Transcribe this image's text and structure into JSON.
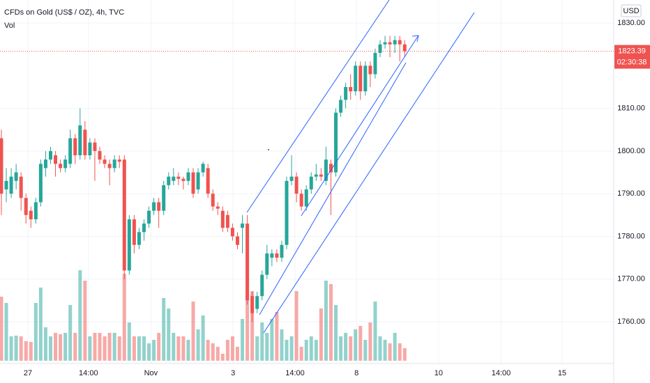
{
  "chart_data": {
    "type": "candlestick",
    "title": "CFDs on Gold (US$ / OZ), 4h, TVC",
    "subtitle": "Vol",
    "currency": "USD",
    "countdown": "02:30:38",
    "up_color": "#26a69a",
    "down_color": "#ef5350",
    "grid": true,
    "x": [
      0,
      1,
      2,
      3,
      4,
      5,
      6,
      7,
      8,
      9,
      10,
      11,
      12,
      13,
      14,
      15,
      16,
      17,
      18,
      19,
      20,
      21,
      22,
      23,
      24,
      25,
      26,
      27,
      28,
      29,
      30,
      31,
      32,
      33,
      34,
      35,
      36,
      37,
      38,
      39,
      40,
      41,
      42,
      43,
      44,
      45,
      46,
      47,
      48,
      49,
      50,
      51,
      52,
      53,
      54,
      55,
      56,
      57,
      58,
      59,
      60,
      61,
      62,
      63,
      64,
      65,
      66,
      67,
      68,
      69,
      70,
      71,
      72,
      73,
      74,
      75,
      76,
      77,
      78,
      79,
      80,
      81,
      82
    ],
    "open": [
      1803,
      1791,
      1790,
      1793,
      1794,
      1789,
      1786,
      1784,
      1788,
      1796,
      1798,
      1799,
      1797,
      1796,
      1797,
      1803,
      1799,
      1805,
      1799,
      1802,
      1800,
      1798,
      1797,
      1796,
      1798,
      1798,
      1772,
      1784,
      1778,
      1781,
      1783,
      1786,
      1788,
      1786,
      1792,
      1793,
      1794,
      1793.5,
      1793,
      1795,
      1791,
      1795,
      1796,
      1790,
      1787,
      1786,
      1785,
      1782,
      1780,
      1782,
      1783,
      1766,
      1763,
      1766,
      1771,
      1775,
      1776,
      1775,
      1778,
      1793,
      1794,
      1790,
      1787,
      1791,
      1794,
      1794.5,
      1793,
      1797,
      1795,
      1809,
      1812,
      1815,
      1814,
      1820,
      1814,
      1820,
      1818,
      1823,
      1825,
      1825.5,
      1825,
      1826,
      1825
    ],
    "high": [
      1805,
      1796,
      1796,
      1797,
      1795,
      1790,
      1787,
      1789,
      1798,
      1800,
      1801,
      1800,
      1798,
      1799,
      1805,
      1804,
      1810,
      1807,
      1803,
      1803,
      1801,
      1799,
      1798,
      1799,
      1799,
      1799,
      1785,
      1785,
      1782,
      1784,
      1787,
      1789,
      1789,
      1793,
      1795,
      1796,
      1795,
      1794,
      1796,
      1796,
      1796,
      1797.5,
      1797,
      1791,
      1788,
      1787,
      1786,
      1783,
      1781,
      1785,
      1785,
      1767,
      1767,
      1772,
      1778,
      1777,
      1777,
      1779,
      1794,
      1799,
      1795,
      1791,
      1792,
      1795,
      1797,
      1796,
      1801,
      1798,
      1810,
      1813,
      1816,
      1818,
      1821,
      1821,
      1821,
      1821,
      1824,
      1826,
      1827,
      1827,
      1827,
      1827,
      1826
    ],
    "low": [
      1785,
      1788,
      1789,
      1791,
      1786,
      1783,
      1782,
      1783,
      1787,
      1794,
      1797,
      1794,
      1795,
      1795,
      1796,
      1797,
      1798,
      1798,
      1798,
      1793,
      1797,
      1796,
      1792,
      1795,
      1796,
      1770,
      1771,
      1776,
      1777,
      1779,
      1782,
      1785,
      1782,
      1785,
      1791,
      1792,
      1792,
      1791,
      1792,
      1789,
      1790,
      1794,
      1789,
      1786,
      1785,
      1781,
      1781,
      1779,
      1777,
      1776,
      1764,
      1760,
      1762,
      1765,
      1770,
      1773,
      1774,
      1774,
      1777,
      1792,
      1788,
      1786,
      1786,
      1790,
      1793,
      1793,
      1792,
      1785,
      1794,
      1808,
      1810,
      1812,
      1813,
      1812,
      1813,
      1815,
      1817,
      1822,
      1824,
      1822,
      1823,
      1821,
      1822
    ],
    "close": [
      1790,
      1793,
      1794,
      1795,
      1789,
      1785,
      1784,
      1788,
      1797,
      1798,
      1800,
      1797,
      1796,
      1798,
      1803,
      1799,
      1806,
      1799,
      1802,
      1800,
      1798,
      1797,
      1796,
      1798,
      1797.5,
      1772,
      1784,
      1778,
      1781,
      1783,
      1786,
      1788,
      1786,
      1792,
      1794,
      1794,
      1793.5,
      1793,
      1795,
      1790,
      1795,
      1797,
      1790,
      1787,
      1786.5,
      1782,
      1782,
      1780,
      1778,
      1783,
      1765,
      1762,
      1766,
      1771,
      1776,
      1776,
      1775,
      1778,
      1793,
      1794,
      1790,
      1787,
      1791,
      1794,
      1794.5,
      1794,
      1798,
      1795,
      1809,
      1812,
      1815,
      1814,
      1820,
      1814,
      1820,
      1818,
      1823,
      1825,
      1825.5,
      1825,
      1826,
      1825,
      1823.39
    ],
    "volume": [
      92,
      83,
      35,
      36,
      35,
      28,
      27,
      83,
      105,
      48,
      35,
      40,
      38,
      40,
      80,
      40,
      130,
      115,
      35,
      40,
      40,
      35,
      40,
      40,
      35,
      125,
      55,
      35,
      35,
      35,
      25,
      30,
      40,
      90,
      75,
      40,
      35,
      35,
      30,
      85,
      45,
      65,
      30,
      25,
      20,
      10,
      30,
      35,
      20,
      60,
      95,
      100,
      35,
      55,
      40,
      60,
      70,
      45,
      30,
      35,
      100,
      20,
      30,
      35,
      30,
      75,
      115,
      110,
      80,
      35,
      40,
      35,
      45,
      50,
      30,
      55,
      85,
      35,
      30,
      25,
      40,
      25,
      18
    ],
    "ylim": [
      1750.2,
      1835.4
    ],
    "yticks": [
      {
        "value": 1760,
        "label": "1760.00"
      },
      {
        "value": 1770,
        "label": "1770.00"
      },
      {
        "value": 1780,
        "label": "1780.00"
      },
      {
        "value": 1790,
        "label": "1790.00"
      },
      {
        "value": 1800,
        "label": "1800.00"
      },
      {
        "value": 1810,
        "label": "1810.00"
      },
      {
        "value": 1830,
        "label": "1830.00"
      }
    ],
    "xlim": [
      -0.28,
      124.5
    ],
    "xticks": [
      {
        "value": 5.4,
        "label": "27"
      },
      {
        "value": 17.7,
        "label": "14:00"
      },
      {
        "value": 30.4,
        "label": "Nov"
      },
      {
        "value": 47.1,
        "label": "3"
      },
      {
        "value": 59.7,
        "label": "14:00"
      },
      {
        "value": 72.2,
        "label": "8"
      },
      {
        "value": 88.9,
        "label": "10"
      },
      {
        "value": 101.6,
        "label": "14:00"
      },
      {
        "value": 114.0,
        "label": "15"
      }
    ]
  }
}
